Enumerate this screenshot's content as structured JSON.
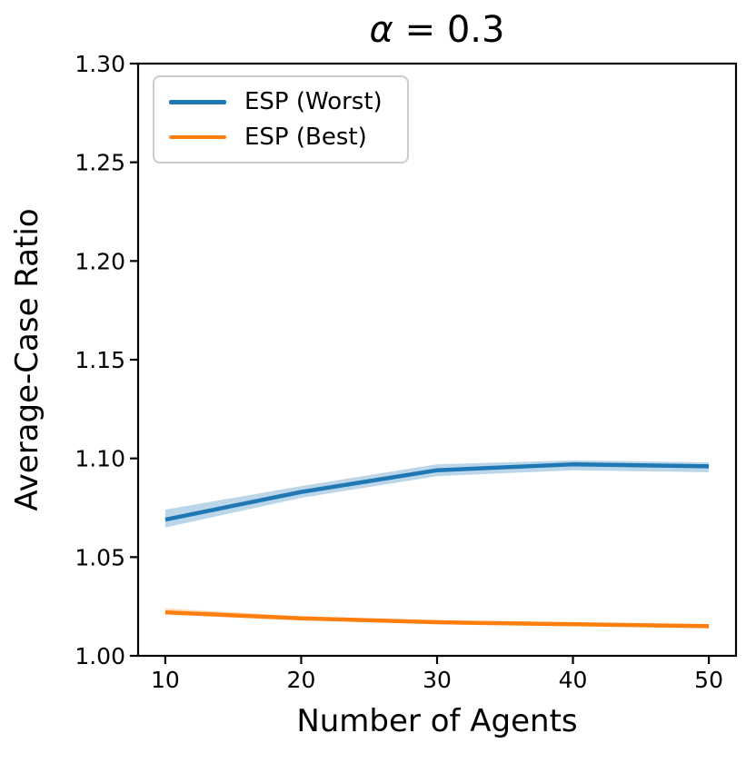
{
  "title": {
    "symbol": "α",
    "rest": " = 0.3"
  },
  "chart_data": {
    "type": "line",
    "title": "α = 0.3",
    "xlabel": "Number of Agents",
    "ylabel": "Average-Case Ratio",
    "x": [
      10,
      20,
      30,
      40,
      50
    ],
    "xlim": [
      8,
      52
    ],
    "ylim": [
      1.0,
      1.3
    ],
    "xticks": [
      10,
      20,
      30,
      40,
      50
    ],
    "xtick_labels": [
      "10",
      "20",
      "30",
      "40",
      "50"
    ],
    "yticks": [
      1.0,
      1.05,
      1.1,
      1.15,
      1.2,
      1.25,
      1.3
    ],
    "ytick_labels": [
      "1.00",
      "1.05",
      "1.10",
      "1.15",
      "1.20",
      "1.25",
      "1.30"
    ],
    "grid": false,
    "legend_position": "upper left",
    "colors": {
      "axis": "#000000",
      "legend_border": "#cccccc"
    },
    "series": [
      {
        "name": "ESP (Worst)",
        "color": "#1f77b4",
        "band_color": "rgba(31,119,180,0.3)",
        "values": [
          1.069,
          1.083,
          1.094,
          1.097,
          1.096
        ],
        "band_lower": [
          1.065,
          1.08,
          1.091,
          1.094,
          1.093
        ],
        "band_upper": [
          1.074,
          1.086,
          1.097,
          1.099,
          1.098
        ]
      },
      {
        "name": "ESP (Best)",
        "color": "#ff7f0e",
        "band_color": "rgba(255,127,14,0.3)",
        "values": [
          1.022,
          1.019,
          1.017,
          1.016,
          1.015
        ],
        "band_lower": [
          1.021,
          1.018,
          1.016,
          1.015,
          1.014
        ],
        "band_upper": [
          1.024,
          1.02,
          1.018,
          1.017,
          1.016
        ]
      }
    ]
  }
}
